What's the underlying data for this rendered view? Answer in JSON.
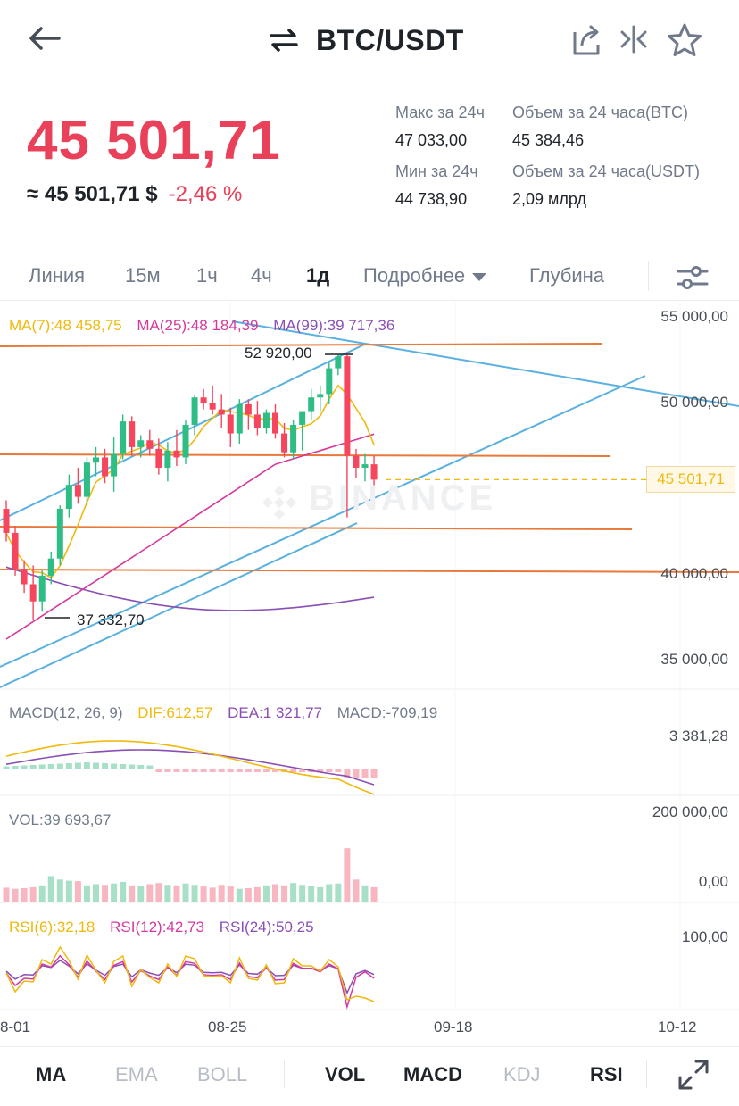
{
  "header": {
    "pair": "BTC/USDT",
    "icons": [
      "back-arrow-icon",
      "swap-icon",
      "share-icon",
      "compare-icon",
      "star-icon"
    ]
  },
  "ticker": {
    "price": "45 501,71",
    "usd_equivalent": "≈ 45 501,71 $",
    "change": "-2,46 %",
    "stats": {
      "high_label": "Макс за 24ч",
      "high_value": "47 033,00",
      "low_label": "Мин за 24ч",
      "low_value": "44 738,90",
      "vol_btc_label": "Объем за 24 часа(BTC)",
      "vol_btc_value": "45 384,46",
      "vol_usdt_label": "Объем за 24 часа(USDT)",
      "vol_usdt_value": "2,09 млрд"
    }
  },
  "intervals": {
    "line": "Линия",
    "m15": "15м",
    "h1": "1ч",
    "h4": "4ч",
    "d1": "1д",
    "more": "Подробнее",
    "depth": "Глубина"
  },
  "main_chart": {
    "ma7": "MA(7):48 458,75",
    "ma25": "MA(25):48 184,39",
    "ma99": "MA(99):39 717,36",
    "y_ticks": [
      "55 000,00",
      "50 000,00",
      "40 000,00",
      "35 000,00"
    ],
    "current_price": "45 501,71",
    "high_label": "52 920,00",
    "low_label": "37 332,70",
    "watermark": "BINANCE"
  },
  "macd": {
    "params": "MACD(12, 26, 9)",
    "dif": "DIF:612,57",
    "dea": "DEA:1 321,77",
    "macd": "MACD:-709,19",
    "y_tick": "3 381,28"
  },
  "volume": {
    "label": "VOL:39 693,67",
    "y_top": "200 000,00",
    "y_bottom": "0,00"
  },
  "rsi": {
    "rsi6": "RSI(6):32,18",
    "rsi12": "RSI(12):42,73",
    "rsi24": "RSI(24):50,25",
    "y_tick": "100,00"
  },
  "x_axis": [
    "8-01",
    "08-25",
    "09-18",
    "10-12"
  ],
  "indicators": {
    "ma": "MA",
    "ema": "EMA",
    "boll": "BOLL",
    "vol": "VOL",
    "macd": "MACD",
    "kdj": "KDJ",
    "rsi": "RSI"
  },
  "colors": {
    "up": "#2ebd85",
    "down": "#f6465d",
    "price_red": "#e84159",
    "ma7": "#f0b90b",
    "ma25": "#d6399e",
    "ma99": "#8a4fb5",
    "trend_blue": "#5ab0e0",
    "trend_orange": "#e8793a"
  },
  "chart_data": {
    "type": "candlestick",
    "title": "BTC/USDT 1д",
    "price_range": [
      33000,
      56000
    ],
    "candles_ohlc": [
      [
        43800,
        44300,
        41900,
        42400
      ],
      [
        42400,
        42800,
        39900,
        40300
      ],
      [
        40300,
        40800,
        38900,
        39400
      ],
      [
        39400,
        40500,
        37332.7,
        38400
      ],
      [
        38400,
        40200,
        37800,
        39900
      ],
      [
        39900,
        41300,
        39400,
        40900
      ],
      [
        40900,
        44000,
        40500,
        43800
      ],
      [
        43800,
        45800,
        43300,
        45200
      ],
      [
        45200,
        46200,
        44100,
        44500
      ],
      [
        44500,
        46800,
        44000,
        46500
      ],
      [
        46500,
        47400,
        45700,
        46800
      ],
      [
        46800,
        47300,
        45300,
        45700
      ],
      [
        45700,
        48000,
        44800,
        47000
      ],
      [
        47000,
        49300,
        46700,
        48900
      ],
      [
        48900,
        49200,
        46900,
        47400
      ],
      [
        47400,
        48100,
        46800,
        47800
      ],
      [
        47800,
        48400,
        46900,
        47300
      ],
      [
        47300,
        47900,
        45800,
        46200
      ],
      [
        46200,
        47700,
        45400,
        47200
      ],
      [
        47200,
        48400,
        46300,
        46800
      ],
      [
        46800,
        49000,
        46400,
        48700
      ],
      [
        48700,
        50400,
        48100,
        50300
      ],
      [
        50300,
        50800,
        49600,
        50000
      ],
      [
        50000,
        51000,
        49300,
        49600
      ],
      [
        49600,
        50500,
        48500,
        49300
      ],
      [
        49300,
        49700,
        47400,
        48200
      ],
      [
        48200,
        50200,
        47600,
        49900
      ],
      [
        49900,
        50200,
        48400,
        49300
      ],
      [
        49300,
        50100,
        48100,
        48500
      ],
      [
        48500,
        49600,
        48200,
        49400
      ],
      [
        49400,
        49900,
        47900,
        48200
      ],
      [
        48200,
        48800,
        46800,
        47100
      ],
      [
        47100,
        49000,
        46700,
        48700
      ],
      [
        48700,
        49200,
        47200,
        49500
      ],
      [
        49500,
        50800,
        49000,
        50300
      ],
      [
        50300,
        51000,
        49500,
        50500
      ],
      [
        50500,
        52400,
        49900,
        52000
      ],
      [
        52000,
        52800,
        51600,
        52700
      ],
      [
        52700,
        52920,
        43300,
        46900
      ],
      [
        46900,
        47300,
        45600,
        46200
      ],
      [
        46200,
        47000,
        45400,
        46400
      ],
      [
        46400,
        46900,
        44900,
        45501.71
      ]
    ],
    "volume": [
      60,
      55,
      58,
      62,
      70,
      110,
      95,
      90,
      88,
      70,
      75,
      72,
      78,
      85,
      70,
      68,
      75,
      80,
      72,
      70,
      78,
      72,
      65,
      60,
      72,
      65,
      55,
      58,
      62,
      70,
      75,
      70,
      80,
      72,
      68,
      62,
      75,
      78,
      230,
      95,
      70,
      62
    ],
    "volume_range": [
      0,
      200000
    ]
  }
}
